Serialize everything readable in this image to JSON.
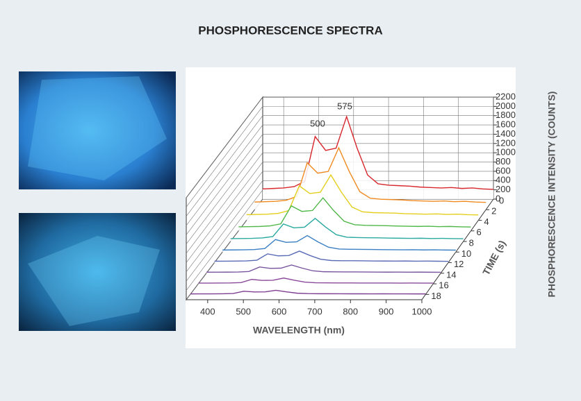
{
  "chart_data": {
    "type": "waterfall",
    "title": "PHOSPHORESCENCE SPECTRA",
    "xlabel": "WAVELENGTH (nm)",
    "zlabel": "TIME (s)",
    "ylabel": "PHOSPHORESCENCE INTENSITY (COUNTS)",
    "annotations": [
      "500",
      "575"
    ],
    "x": [
      340,
      370,
      400,
      430,
      460,
      490,
      520,
      550,
      580,
      610,
      640,
      670,
      700,
      730,
      760,
      790,
      820,
      850,
      880,
      910,
      940,
      970,
      1000
    ],
    "xlim": [
      340,
      1000
    ],
    "xticks": [
      400,
      500,
      600,
      700,
      800,
      900,
      1000
    ],
    "ylim": [
      0,
      2200
    ],
    "yticks": [
      0,
      200,
      400,
      600,
      800,
      1000,
      1200,
      1400,
      1600,
      1800,
      2000,
      2200
    ],
    "zlim": [
      0,
      19
    ],
    "zticks": [
      0,
      2,
      4,
      6,
      8,
      10,
      12,
      14,
      16,
      18
    ],
    "grid": true,
    "series": [
      {
        "time": 0,
        "color": "#d7262b",
        "values": [
          220,
          230,
          240,
          270,
          380,
          1350,
          1050,
          1100,
          1780,
          1100,
          520,
          330,
          300,
          290,
          280,
          260,
          250,
          240,
          250,
          230,
          240,
          220,
          210
        ]
      },
      {
        "time": 2,
        "color": "#f08a1f",
        "values": [
          165,
          173,
          180,
          203,
          285,
          1013,
          788,
          825,
          1335,
          825,
          390,
          248,
          225,
          218,
          210,
          195,
          188,
          180,
          188,
          173,
          180,
          165,
          158
        ]
      },
      {
        "time": 4,
        "color": "#e3cf1c",
        "values": [
          121,
          127,
          132,
          149,
          209,
          743,
          578,
          605,
          979,
          605,
          286,
          182,
          165,
          160,
          154,
          143,
          138,
          132,
          138,
          127,
          132,
          121,
          116
        ]
      },
      {
        "time": 6,
        "color": "#4fb848",
        "values": [
          88,
          92,
          96,
          108,
          152,
          540,
          420,
          440,
          712,
          440,
          208,
          132,
          120,
          116,
          112,
          104,
          100,
          96,
          100,
          92,
          96,
          88,
          84
        ]
      },
      {
        "time": 8,
        "color": "#2aa9a0",
        "values": [
          62,
          64,
          67,
          76,
          106,
          378,
          294,
          308,
          498,
          308,
          146,
          92,
          84,
          81,
          78,
          73,
          70,
          67,
          70,
          64,
          67,
          62,
          59
        ]
      },
      {
        "time": 10,
        "color": "#3a7fc3",
        "values": [
          44,
          46,
          48,
          54,
          76,
          270,
          210,
          220,
          356,
          220,
          104,
          66,
          60,
          58,
          56,
          52,
          50,
          48,
          50,
          46,
          48,
          44,
          42
        ]
      },
      {
        "time": 12,
        "color": "#5a6bb5",
        "values": [
          31,
          32,
          34,
          38,
          53,
          189,
          147,
          154,
          249,
          154,
          73,
          46,
          42,
          41,
          39,
          36,
          35,
          34,
          35,
          32,
          34,
          31,
          29
        ]
      },
      {
        "time": 14,
        "color": "#7a559f",
        "values": [
          22,
          23,
          24,
          27,
          38,
          135,
          105,
          110,
          178,
          110,
          52,
          33,
          30,
          29,
          28,
          26,
          25,
          24,
          25,
          23,
          24,
          22,
          21
        ]
      },
      {
        "time": 16,
        "color": "#8a4a9a",
        "values": [
          15,
          16,
          17,
          19,
          27,
          95,
          74,
          77,
          125,
          77,
          36,
          23,
          21,
          20,
          20,
          18,
          18,
          17,
          18,
          16,
          17,
          15,
          15
        ]
      },
      {
        "time": 18,
        "color": "#7e3f92",
        "values": [
          11,
          12,
          12,
          14,
          19,
          68,
          53,
          55,
          89,
          55,
          26,
          17,
          15,
          15,
          14,
          13,
          13,
          12,
          13,
          12,
          12,
          11,
          11
        ]
      }
    ]
  }
}
